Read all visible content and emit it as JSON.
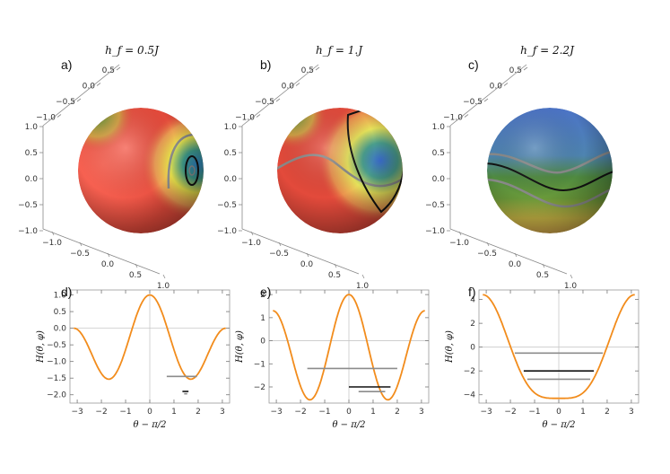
{
  "panels_top": [
    {
      "label": "a)",
      "title": "h_f = 0.5J",
      "top_ticks": [
        "0.5",
        "0.0",
        "−0.5",
        "−1.0"
      ],
      "left_ticks": [
        "1.0",
        "0.5",
        "0.0",
        "−0.5",
        "−1.0"
      ],
      "bottom_ticks": [
        "−1.0",
        "−0.5",
        "0.0",
        "0.5",
        "1.0"
      ],
      "color_scheme": "red-dominant"
    },
    {
      "label": "b)",
      "title": "h_f = 1.J",
      "top_ticks": [
        "0.5",
        "0.0",
        "−0.5",
        "−1.0"
      ],
      "left_ticks": [
        "1.0",
        "0.5",
        "0.0",
        "−0.5",
        "−1.0"
      ],
      "bottom_ticks": [
        "−1.0",
        "−0.5",
        "0.0",
        "0.5",
        "1.0"
      ],
      "color_scheme": "red-dominant"
    },
    {
      "label": "c)",
      "title": "h_f = 2.2J",
      "top_ticks": [
        "0.5",
        "0.0",
        "−0.5",
        "−1.0"
      ],
      "left_ticks": [
        "1.0",
        "0.5",
        "0.0",
        "−0.5",
        "−1.0"
      ],
      "bottom_ticks": [
        "−1.0",
        "−0.5",
        "0.0",
        "0.5",
        "1.0"
      ],
      "color_scheme": "blue-dominant"
    }
  ],
  "chart_data": [
    {
      "type": "line",
      "label": "d)",
      "xlabel": "θ − π/2",
      "ylabel": "H(θ, φ)",
      "xlim": [
        -3.3,
        3.3
      ],
      "ylim": [
        -2.25,
        1.15
      ],
      "xticks": [
        -3,
        -2,
        -1,
        0,
        1,
        2,
        3
      ],
      "yticks": [
        1.0,
        0.5,
        0.0,
        -0.5,
        -1.0,
        -1.5,
        -2.0
      ],
      "ytick_labels": [
        "1.0",
        "0.5",
        "0.0",
        "−0.5",
        "−1.0",
        "−1.5",
        "−2.0"
      ],
      "curve_color": "#f28c1c",
      "curve": {
        "A": 1.0,
        "B": 0.5
      },
      "levels": [
        {
          "y": -1.45,
          "x1": 0.7,
          "x2": 1.95,
          "color": "#8c8c8c"
        },
        {
          "y": -1.9,
          "x1": 1.35,
          "x2": 1.6,
          "color": "#111111"
        },
        {
          "y": -1.97,
          "x1": 1.42,
          "x2": 1.55,
          "color": "#8c8c8c"
        }
      ]
    },
    {
      "type": "line",
      "label": "e)",
      "xlabel": "θ − π/2",
      "ylabel": "H(θ, φ)",
      "xlim": [
        -3.3,
        3.3
      ],
      "ylim": [
        -2.7,
        2.2
      ],
      "xticks": [
        -3,
        -2,
        -1,
        0,
        1,
        2,
        3
      ],
      "yticks": [
        2,
        1,
        0,
        -1,
        -2
      ],
      "ytick_labels": [
        "2",
        "1",
        "0",
        "−1",
        "−2"
      ],
      "curve_color": "#f28c1c",
      "curve": {
        "A": 2.0,
        "B": 0.5
      },
      "levels": [
        {
          "y": -1.2,
          "x1": -1.72,
          "x2": 2.0,
          "color": "#8c8c8c"
        },
        {
          "y": -2.0,
          "x1": 0.0,
          "x2": 1.72,
          "color": "#111111"
        },
        {
          "y": -2.2,
          "x1": 0.4,
          "x2": 1.5,
          "color": "#8c8c8c"
        }
      ]
    },
    {
      "type": "line",
      "label": "f)",
      "xlabel": "θ − π/2",
      "ylabel": "H(θ, φ)",
      "xlim": [
        -3.3,
        3.3
      ],
      "ylim": [
        -4.7,
        4.8
      ],
      "xticks": [
        -3,
        -2,
        -1,
        0,
        1,
        2,
        3
      ],
      "yticks": [
        4,
        2,
        0,
        -2,
        -4
      ],
      "ytick_labels": [
        "4",
        "2",
        "0",
        "−2",
        "−4"
      ],
      "curve_color": "#f28c1c",
      "curve": {
        "A": 4.4,
        "B": 0.0
      },
      "levels": [
        {
          "y": -0.5,
          "x1": -1.82,
          "x2": 1.82,
          "color": "#8c8c8c"
        },
        {
          "y": -2.0,
          "x1": -1.45,
          "x2": 1.45,
          "color": "#111111"
        },
        {
          "y": -2.7,
          "x1": -1.3,
          "x2": 1.3,
          "color": "#8c8c8c"
        }
      ]
    }
  ]
}
